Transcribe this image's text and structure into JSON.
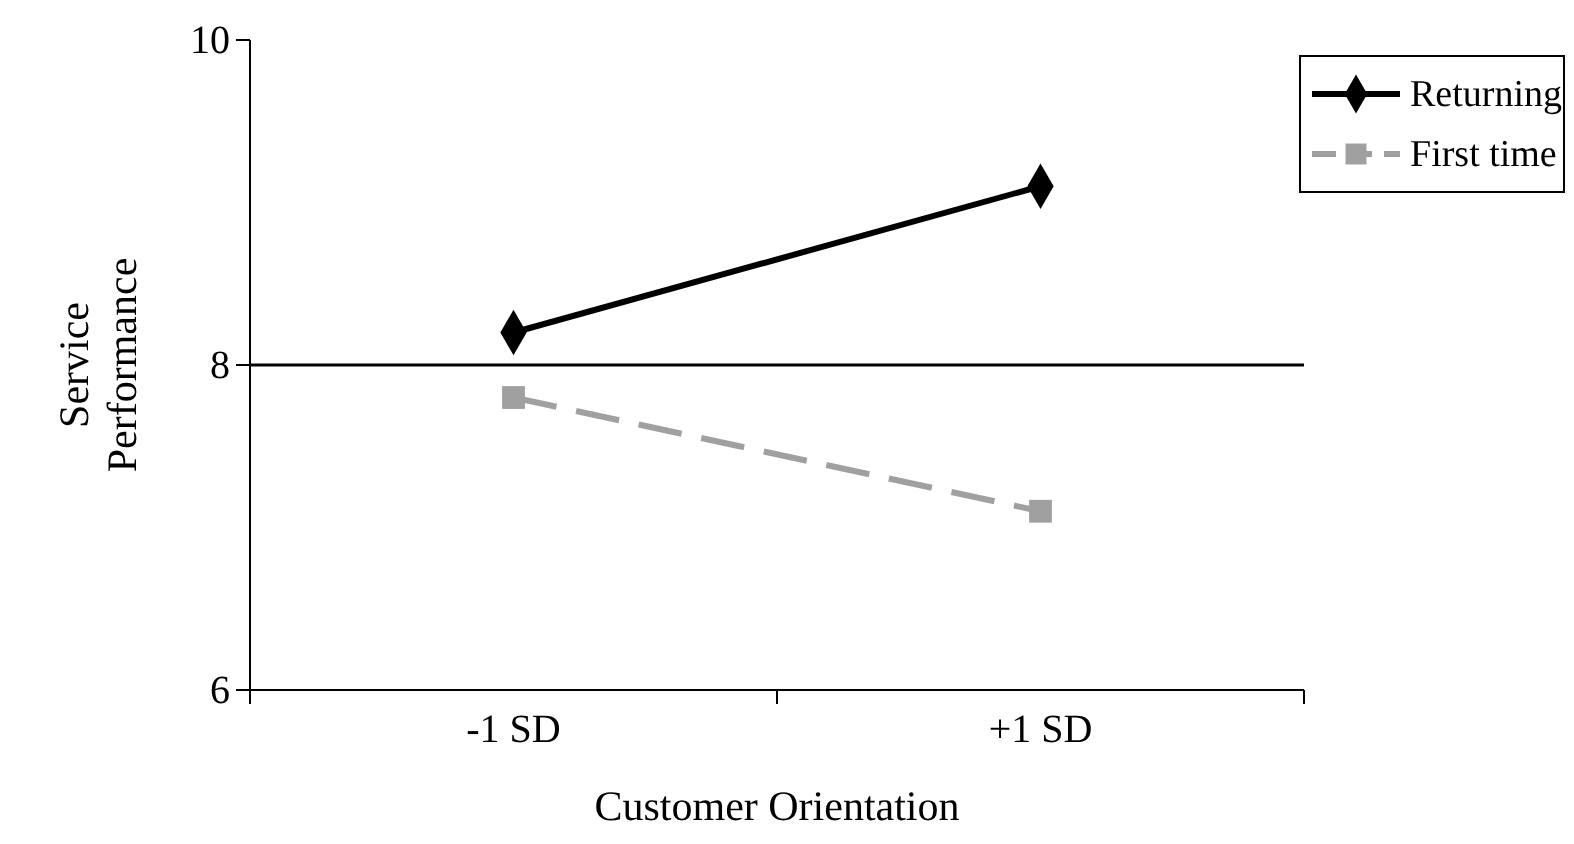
{
  "chart_data": {
    "type": "line",
    "xlabel": "Customer Orientation",
    "ylabel": "Service Performance",
    "categories": [
      "-1 SD",
      "+1 SD"
    ],
    "series": [
      {
        "name": "Returning",
        "color": "#000000",
        "values": [
          8.2,
          9.1
        ],
        "marker": "diamond",
        "line_style": "solid"
      },
      {
        "name": "First time",
        "color": "#a0a0a0",
        "values": [
          7.8,
          7.1
        ],
        "marker": "square",
        "line_style": "dashed"
      }
    ],
    "ylim": [
      6,
      10
    ],
    "yticks": [
      6,
      8,
      10
    ],
    "grid": false,
    "legend": "top right",
    "ref_lines": [
      {
        "axis": "y",
        "value": 8,
        "color": "#000000"
      }
    ]
  }
}
